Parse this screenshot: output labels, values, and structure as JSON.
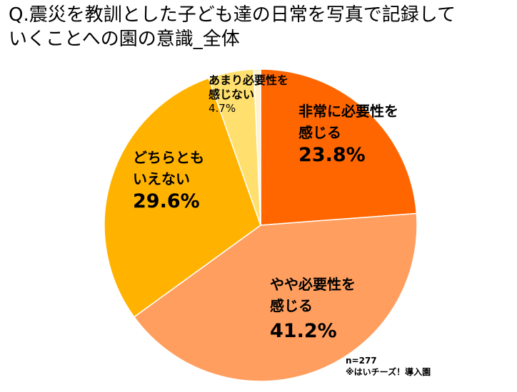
{
  "title": {
    "line1": "Q.震災を教訓とした子ども達の日常を写真で記録して",
    "line2": "いくことへの園の意識_全体"
  },
  "chart_data": {
    "type": "pie",
    "title": "Q.震災を教訓とした子ども達の日常を写真で記録していくことへの園の意識_全体",
    "slices": [
      {
        "label_line1": "非常に必要性を",
        "label_line2": "感じる",
        "value": 23.8,
        "value_label": "23.8%",
        "color": "#ff6600"
      },
      {
        "label_line1": "やや必要性を",
        "label_line2": "感じる",
        "value": 41.2,
        "value_label": "41.2%",
        "color": "#ff9e5e"
      },
      {
        "label_line1": "どちらとも",
        "label_line2": "いえない",
        "value": 29.6,
        "value_label": "29.6%",
        "color": "#ffb300"
      },
      {
        "label_line1": "あまり必要性を",
        "label_line2": "感じない",
        "value": 4.7,
        "value_label": "4.7%",
        "color": "#ffdf6e"
      },
      {
        "label_line1": "",
        "label_line2": "",
        "value": 0.7,
        "value_label": "",
        "color": "#fff2cc"
      }
    ]
  },
  "note": {
    "n": "n=277",
    "source": "※はいチーズ！導入園"
  }
}
